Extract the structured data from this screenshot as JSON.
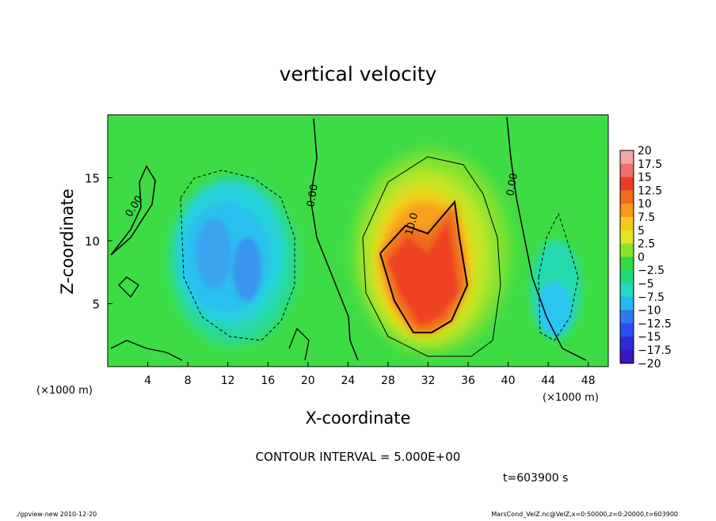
{
  "chart_data": {
    "type": "heatmap",
    "title": "vertical velocity",
    "xlabel": "X-coordinate",
    "ylabel": "Z-coordinate",
    "x_unit_left": "(×1000 m)",
    "x_unit_right": "(×1000 m)",
    "xlim": [
      0,
      50
    ],
    "ylim": [
      0,
      20
    ],
    "x_ticks": [
      "4",
      "8",
      "12",
      "16",
      "20",
      "24",
      "28",
      "32",
      "36",
      "40",
      "44",
      "48"
    ],
    "y_ticks": [
      "5",
      "10",
      "15"
    ],
    "colorbar": {
      "labels": [
        "20",
        "17.5",
        "15",
        "12.5",
        "10",
        "7.5",
        "5",
        "2.5",
        "0",
        "−2.5",
        "−5",
        "−7.5",
        "−10",
        "−12.5",
        "−15",
        "−17.5",
        "−20"
      ],
      "colors": [
        "#f4a6a6",
        "#f07070",
        "#ee3c2a",
        "#f26a1e",
        "#f79a1a",
        "#f7c81e",
        "#dfe623",
        "#8ee22c",
        "#33d940",
        "#22d97a",
        "#22d9c4",
        "#26b8f2",
        "#2a7af2",
        "#2c4ef0",
        "#2a2ad8",
        "#3a16c0",
        "#5a12a8"
      ]
    },
    "contour_labels": [
      "0.00",
      "0.00",
      "0.00",
      "10.0"
    ],
    "annotations": {
      "contour_interval": "CONTOUR INTERVAL = 5.000E+00",
      "time": "t=603900 s"
    },
    "features": [
      {
        "kind": "updraft",
        "x": 31.5,
        "z": 9.0,
        "peak": 17.5
      },
      {
        "kind": "downdraft",
        "x": 13,
        "z": 9.0,
        "peak": -9
      },
      {
        "kind": "downdraft",
        "x": 44,
        "z": 4.5,
        "peak": -7
      }
    ]
  },
  "footer": {
    "left": "./gpview-new   2010-12-20",
    "right": "MarsCond_VelZ.nc@VelZ,x=0:50000,z=0:20000,t=603900"
  }
}
